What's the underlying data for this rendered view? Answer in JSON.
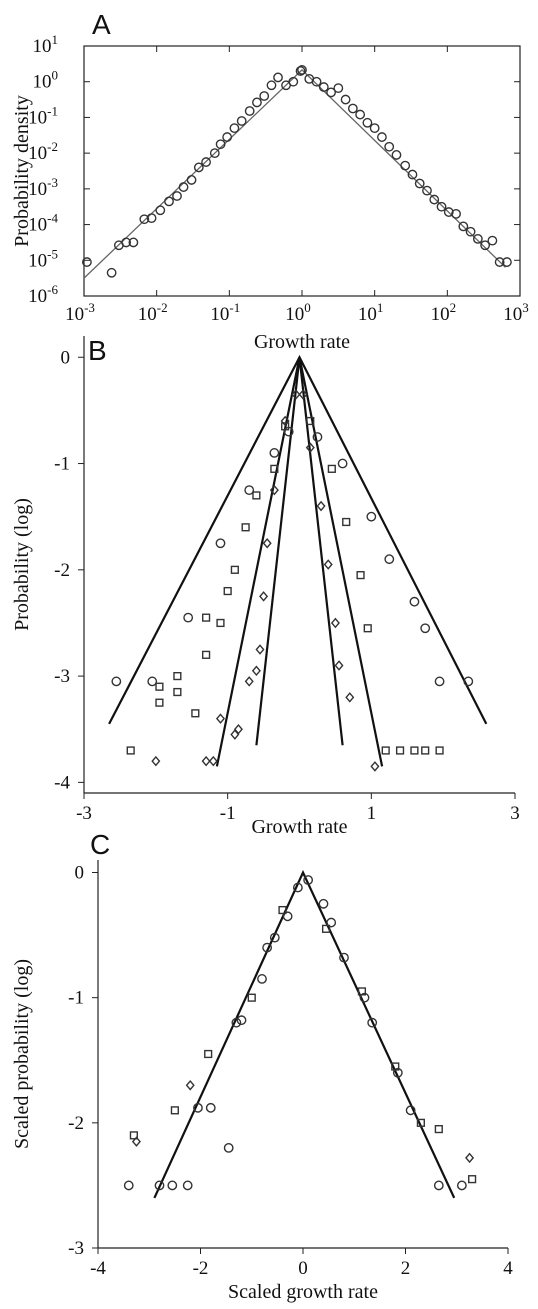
{
  "chart_data": [
    {
      "panel": "A",
      "type": "scatter",
      "xlabel": "Growth rate",
      "ylabel": "Probability density",
      "xscale": "log",
      "yscale": "log",
      "xlim_exp": [
        -3,
        3
      ],
      "ylim_exp": [
        -6,
        1
      ],
      "x_tick_exponents": [
        "-3",
        "-2",
        "-1",
        "0",
        "1",
        "2",
        "3"
      ],
      "y_tick_exponents": [
        "-6",
        "-5",
        "-4",
        "-3",
        "-2",
        "-1",
        "0",
        "1"
      ],
      "tick_base": "10",
      "grid": false,
      "marker": "circle",
      "points_log10": [
        [
          -2.96,
          -5.05
        ],
        [
          -2.62,
          -5.35
        ],
        [
          -2.52,
          -4.58
        ],
        [
          -2.42,
          -4.5
        ],
        [
          -2.32,
          -4.5
        ],
        [
          -2.17,
          -3.85
        ],
        [
          -2.07,
          -3.82
        ],
        [
          -1.95,
          -3.6
        ],
        [
          -1.83,
          -3.35
        ],
        [
          -1.72,
          -3.2
        ],
        [
          -1.63,
          -2.95
        ],
        [
          -1.52,
          -2.75
        ],
        [
          -1.42,
          -2.4
        ],
        [
          -1.32,
          -2.25
        ],
        [
          -1.2,
          -2.0
        ],
        [
          -1.12,
          -1.75
        ],
        [
          -1.03,
          -1.55
        ],
        [
          -0.93,
          -1.3
        ],
        [
          -0.83,
          -1.1
        ],
        [
          -0.72,
          -0.82
        ],
        [
          -0.62,
          -0.58
        ],
        [
          -0.52,
          -0.4
        ],
        [
          -0.42,
          -0.1
        ],
        [
          -0.33,
          0.12
        ],
        [
          -0.22,
          -0.1
        ],
        [
          -0.12,
          0.0
        ],
        [
          -0.02,
          0.3
        ],
        [
          0.0,
          0.33
        ],
        [
          0.1,
          0.08
        ],
        [
          0.2,
          0.0
        ],
        [
          0.3,
          -0.15
        ],
        [
          0.4,
          -0.3
        ],
        [
          0.5,
          -0.18
        ],
        [
          0.6,
          -0.5
        ],
        [
          0.7,
          -0.75
        ],
        [
          0.8,
          -0.92
        ],
        [
          0.9,
          -1.15
        ],
        [
          1.0,
          -1.3
        ],
        [
          1.1,
          -1.55
        ],
        [
          1.2,
          -1.82
        ],
        [
          1.3,
          -2.05
        ],
        [
          1.42,
          -2.35
        ],
        [
          1.52,
          -2.6
        ],
        [
          1.62,
          -2.85
        ],
        [
          1.72,
          -3.05
        ],
        [
          1.82,
          -3.3
        ],
        [
          1.92,
          -3.5
        ],
        [
          2.02,
          -3.65
        ],
        [
          2.12,
          -3.7
        ],
        [
          2.22,
          -4.05
        ],
        [
          2.32,
          -4.2
        ],
        [
          2.42,
          -4.4
        ],
        [
          2.52,
          -4.58
        ],
        [
          2.62,
          -4.45
        ],
        [
          2.72,
          -5.05
        ],
        [
          2.82,
          -5.05
        ]
      ],
      "fit_log10": [
        [
          -3.0,
          -5.5
        ],
        [
          0.0,
          0.33
        ],
        [
          2.8,
          -5.2
        ]
      ]
    },
    {
      "panel": "B",
      "type": "scatter",
      "xlabel": "Growth rate",
      "ylabel": "Probability (log)",
      "xlim": [
        -3,
        3
      ],
      "ylim": [
        -4.1,
        0.2
      ],
      "x_ticks": [
        "-3",
        "-1",
        "1",
        "3"
      ],
      "x_tick_values": [
        -3,
        -1,
        1,
        3
      ],
      "y_ticks": [
        "0",
        "-1",
        "-2",
        "-3",
        "-4"
      ],
      "y_tick_values": [
        0,
        -1,
        -2,
        -3,
        -4
      ],
      "grid": false,
      "series": [
        {
          "marker": "circle",
          "points": [
            [
              -2.55,
              -3.05
            ],
            [
              -2.05,
              -3.05
            ],
            [
              -1.55,
              -2.45
            ],
            [
              -1.1,
              -1.75
            ],
            [
              -0.7,
              -1.25
            ],
            [
              -0.35,
              -0.9
            ],
            [
              -0.15,
              -0.7
            ],
            [
              0.25,
              -0.75
            ],
            [
              0.6,
              -1.0
            ],
            [
              1.0,
              -1.5
            ],
            [
              1.25,
              -1.9
            ],
            [
              1.6,
              -2.3
            ],
            [
              1.75,
              -2.55
            ],
            [
              1.95,
              -3.05
            ],
            [
              2.35,
              -3.05
            ]
          ]
        },
        {
          "marker": "square",
          "points": [
            [
              -2.35,
              -3.7
            ],
            [
              -1.95,
              -3.1
            ],
            [
              -1.95,
              -3.25
            ],
            [
              -1.7,
              -3.0
            ],
            [
              -1.7,
              -3.15
            ],
            [
              -1.45,
              -3.35
            ],
            [
              -1.3,
              -2.45
            ],
            [
              -1.3,
              -2.8
            ],
            [
              -1.1,
              -2.5
            ],
            [
              -1.0,
              -2.2
            ],
            [
              -0.9,
              -2.0
            ],
            [
              -0.75,
              -1.6
            ],
            [
              -0.6,
              -1.3
            ],
            [
              -0.35,
              -1.05
            ],
            [
              -0.2,
              -0.65
            ],
            [
              0.15,
              -0.6
            ],
            [
              0.45,
              -1.05
            ],
            [
              0.65,
              -1.55
            ],
            [
              0.85,
              -2.05
            ],
            [
              0.95,
              -2.55
            ],
            [
              1.2,
              -3.7
            ],
            [
              1.4,
              -3.7
            ],
            [
              1.6,
              -3.7
            ],
            [
              1.75,
              -3.7
            ],
            [
              1.95,
              -3.7
            ]
          ]
        },
        {
          "marker": "diamond",
          "points": [
            [
              -2.0,
              -3.8
            ],
            [
              -1.3,
              -3.8
            ],
            [
              -1.2,
              -3.8
            ],
            [
              -1.1,
              -3.4
            ],
            [
              -0.9,
              -3.55
            ],
            [
              -0.85,
              -3.5
            ],
            [
              -0.7,
              -3.05
            ],
            [
              -0.6,
              -2.95
            ],
            [
              -0.55,
              -2.75
            ],
            [
              -0.5,
              -2.25
            ],
            [
              -0.45,
              -1.75
            ],
            [
              -0.35,
              -1.25
            ],
            [
              -0.2,
              -0.6
            ],
            [
              -0.05,
              -0.35
            ],
            [
              0.05,
              -0.35
            ],
            [
              0.15,
              -0.85
            ],
            [
              0.3,
              -1.4
            ],
            [
              0.4,
              -1.95
            ],
            [
              0.5,
              -2.5
            ],
            [
              0.55,
              -2.9
            ],
            [
              0.7,
              -3.2
            ],
            [
              1.05,
              -3.85
            ]
          ]
        }
      ],
      "fit_lines": [
        [
          [
            -2.65,
            -3.45
          ],
          [
            0.0,
            0.0
          ],
          [
            2.6,
            -3.45
          ]
        ],
        [
          [
            -1.15,
            -3.85
          ],
          [
            0.0,
            0.0
          ],
          [
            1.15,
            -3.85
          ]
        ],
        [
          [
            -0.6,
            -3.65
          ],
          [
            0.0,
            0.0
          ],
          [
            0.6,
            -3.65
          ]
        ]
      ]
    },
    {
      "panel": "C",
      "type": "scatter",
      "xlabel": "Scaled growth rate",
      "ylabel": "Scaled probability (log)",
      "xlim": [
        -4,
        4
      ],
      "ylim": [
        -3,
        0.1
      ],
      "x_ticks": [
        "-4",
        "-2",
        "0",
        "2",
        "4"
      ],
      "x_tick_values": [
        -4,
        -2,
        0,
        2,
        4
      ],
      "y_ticks": [
        "0",
        "-1",
        "-2",
        "-3"
      ],
      "y_tick_values": [
        0,
        -1,
        -2,
        -3
      ],
      "grid": false,
      "series": [
        {
          "marker": "circle",
          "points": [
            [
              -3.4,
              -2.5
            ],
            [
              -2.8,
              -2.5
            ],
            [
              -2.55,
              -2.5
            ],
            [
              -2.25,
              -2.5
            ],
            [
              -2.05,
              -1.88
            ],
            [
              -1.8,
              -1.88
            ],
            [
              -1.45,
              -2.2
            ],
            [
              -1.3,
              -1.2
            ],
            [
              -1.2,
              -1.18
            ],
            [
              -0.8,
              -0.85
            ],
            [
              -0.7,
              -0.6
            ],
            [
              -0.55,
              -0.52
            ],
            [
              -0.3,
              -0.35
            ],
            [
              -0.1,
              -0.12
            ],
            [
              0.1,
              -0.06
            ],
            [
              0.4,
              -0.25
            ],
            [
              0.55,
              -0.4
            ],
            [
              0.8,
              -0.68
            ],
            [
              1.2,
              -1.0
            ],
            [
              1.35,
              -1.2
            ],
            [
              1.85,
              -1.6
            ],
            [
              2.1,
              -1.9
            ],
            [
              2.65,
              -2.5
            ],
            [
              3.1,
              -2.5
            ]
          ]
        },
        {
          "marker": "square",
          "points": [
            [
              -3.3,
              -2.1
            ],
            [
              -2.5,
              -1.9
            ],
            [
              -1.85,
              -1.45
            ],
            [
              -1.0,
              -1.0
            ],
            [
              -0.4,
              -0.3
            ],
            [
              0.45,
              -0.45
            ],
            [
              1.15,
              -0.95
            ],
            [
              1.8,
              -1.55
            ],
            [
              2.3,
              -2.0
            ],
            [
              2.65,
              -2.05
            ],
            [
              3.3,
              -2.45
            ]
          ]
        },
        {
          "marker": "diamond",
          "points": [
            [
              -3.25,
              -2.15
            ],
            [
              -2.2,
              -1.7
            ],
            [
              3.25,
              -2.28
            ]
          ]
        }
      ],
      "fit_line": [
        [
          -2.9,
          -2.6
        ],
        [
          0.0,
          0.0
        ],
        [
          2.95,
          -2.6
        ]
      ]
    }
  ]
}
